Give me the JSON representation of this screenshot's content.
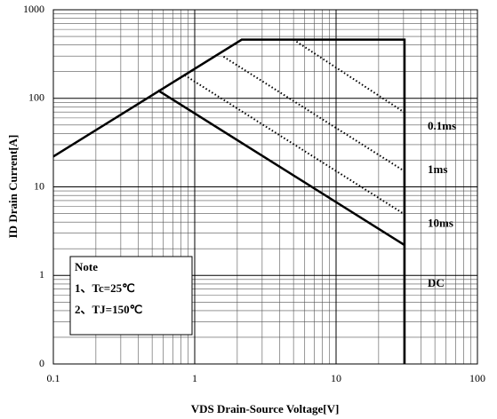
{
  "chart_data": {
    "type": "line",
    "x_scale": "log",
    "y_scale": "log",
    "grid": true,
    "minor_grid": true,
    "xlabel": "VDS Drain-Source Voltage[V]",
    "ylabel": "ID Drain Current[A]",
    "xlim": [
      0.1,
      100
    ],
    "ylim": [
      0.1,
      1000
    ],
    "xticks": [
      0.1,
      1,
      10,
      100
    ],
    "yticks": [
      1000,
      100,
      10,
      1,
      {
        "value": 0.1,
        "label": "0"
      }
    ],
    "series": [
      {
        "color": "#000000",
        "style": "solid",
        "x": [
          0.1,
          2.15,
          30.5,
          30.5
        ],
        "values": [
          22,
          460,
          460,
          0.1
        ]
      },
      {
        "name": "0.1ms",
        "color": "#000000",
        "style": "dotted",
        "x": [
          5,
          30.5
        ],
        "values": [
          460,
          69
        ]
      },
      {
        "name": "1ms",
        "color": "#000000",
        "style": "dotted",
        "x": [
          1.6,
          30.5
        ],
        "values": [
          295,
          15
        ]
      },
      {
        "name": "10ms",
        "color": "#000000",
        "style": "dotted",
        "x": [
          0.85,
          30.5
        ],
        "values": [
          182,
          4.9
        ]
      },
      {
        "name": "DC",
        "color": "#000000",
        "style": "solid",
        "x": [
          0.55,
          30.5
        ],
        "values": [
          123,
          2.2
        ]
      }
    ],
    "note": {
      "title": "Note",
      "lines": [
        "1、Tc=25℃",
        "2、TJ=150℃"
      ]
    }
  }
}
